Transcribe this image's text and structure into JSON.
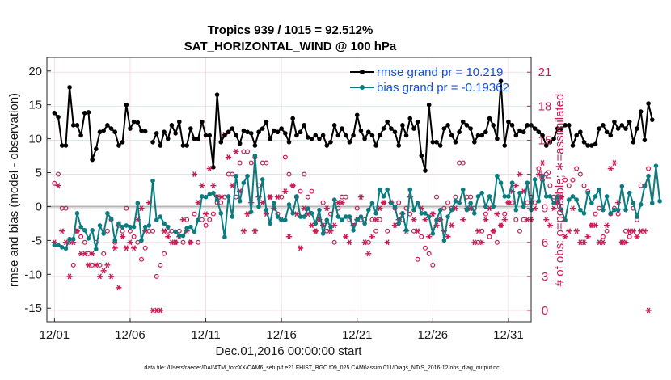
{
  "chart_data": {
    "type": "line",
    "title": "Tropics 939 / 1015 = 92.512%",
    "subtitle": "SAT_HORIZONTAL_WIND @ 100 hPa",
    "xlabel": "Dec.01,2016 00:00:00 start",
    "ylabel": "rmse and bias (model - observation)",
    "y2label": "# of obs: o=possible; ∗=assimilated",
    "footer": "data file: /Users/raeder/DAI/ATM_forcXX/CAM6_setup/f.e21.FHIST_BGC.f09_025.CAM6assim.011/Diags_NTrS_2016-12/obs_diag_output.nc",
    "x_tick_labels": [
      "12/01",
      "12/06",
      "12/11",
      "12/16",
      "12/21",
      "12/26",
      "12/31"
    ],
    "x_ticks": [
      0,
      5,
      10,
      15,
      20,
      25,
      30
    ],
    "xlim": [
      -0.5,
      31.5
    ],
    "ylim": [
      -17,
      22
    ],
    "y_ticks": [
      -15,
      -10,
      -5,
      0,
      5,
      10,
      15,
      20
    ],
    "y_tick_labels": [
      "-15",
      "-10",
      "-5",
      "0",
      "5",
      "10",
      "15",
      "20"
    ],
    "y2lim": [
      -1,
      22.3
    ],
    "y2_ticks": [
      0,
      3,
      6,
      9,
      12,
      15,
      18,
      21
    ],
    "y2_tick_labels": [
      "0",
      "3",
      "6",
      "9",
      "12",
      "15",
      "18",
      "21"
    ],
    "x_start": 0,
    "x_step": 0.25,
    "legend": [
      "rmse grand pr = 10.219",
      "bias grand pr = -0.19362"
    ],
    "colors": {
      "rmse": "#000000",
      "bias": "#0b7d80",
      "obs": "#cc1a55",
      "zero": "#b5b5b5"
    },
    "series": [
      {
        "name": "rmse grand pr = 10.219",
        "values": [
          13.8,
          13.2,
          9.0,
          9.0,
          17.6,
          12.0,
          12.0,
          10.5,
          13.8,
          13.9,
          6.9,
          8.5,
          11.0,
          11.2,
          12.0,
          11.5,
          11.0,
          9.0,
          9.5,
          15.0,
          11.5,
          12.5,
          12.4,
          11.2,
          11.1,
          null,
          9.5,
          10.8,
          9.0,
          11.0,
          10.0,
          12.0,
          10.8,
          12.5,
          9.0,
          9.0,
          11.5,
          10.0,
          10.0,
          12.5,
          10.5,
          10.5,
          5.8,
          16.5,
          9.5,
          10.5,
          11.0,
          11.5,
          10.5,
          9.3,
          11.2,
          11.0,
          10.8,
          9.0,
          11.0,
          11.5,
          12.5,
          10.0,
          11.2,
          11.0,
          11.5,
          10.8,
          9.5,
          13.0,
          10.5,
          11.0,
          12.0,
          10.2,
          10.0,
          10.5,
          10.0,
          10.5,
          9.0,
          9.5,
          12.0,
          10.5,
          11.5,
          10.5,
          9.5,
          10.5,
          13.5,
          11.2,
          10.0,
          11.0,
          10.5,
          9.0,
          10.5,
          11.5,
          12.5,
          11.5,
          11.0,
          9.0,
          12.0,
          10.5,
          13.0,
          11.5,
          12.5,
          7.5,
          5.3,
          15.0,
          9.5,
          9.5,
          9.0,
          11.5,
          12.0,
          10.5,
          9.5,
          11.0,
          12.5,
          12.0,
          11.5,
          9.5,
          10.5,
          10.5,
          11.0,
          13.0,
          12.0,
          10.0,
          18.5,
          9.0,
          12.5,
          12.0,
          10.5,
          11.2,
          11.0,
          12.0,
          12.0,
          11.5,
          11.0,
          10.5,
          9.0,
          9.5,
          10.0,
          11.5,
          11.5,
          12.0,
          12.0,
          9.0,
          10.5,
          11.0,
          9.5,
          9.0,
          9.0,
          9.2,
          11.5,
          12.0,
          11.0,
          10.5,
          12.5,
          11.5,
          12.0,
          11.5,
          12.5,
          9.5,
          11.5,
          14.0,
          9.8,
          15.2,
          12.8
        ],
        "values_note": "rmse values continue"
      },
      {
        "name": "bias grand pr = -0.19362",
        "values": [
          -5.7,
          -5.7,
          -6.0,
          -6.2,
          -4.8,
          -4.8,
          -1.0,
          -3.0,
          -3.5,
          -4.7,
          -3.5,
          -6.3,
          -2.8,
          -4.0,
          -1.0,
          -1.8,
          -5.0,
          -2.5,
          -3.0,
          -2.8,
          -3.0,
          -3.0,
          0.5,
          -5.0,
          -3.0,
          -2.8,
          3.8,
          -2.0,
          -1.5,
          -2.5,
          -3.0,
          null,
          -3.7,
          -4.3,
          -4.3,
          -3.2,
          -3.0,
          -3.7,
          -2.0,
          1.5,
          1.4,
          1.8,
          2.0,
          1.0,
          -1.0,
          -4.5,
          1.5,
          -1.5,
          4.5,
          0.8,
          3.5,
          4.5,
          -0.8,
          7.5,
          0.0,
          4.0,
          -0.5,
          -2.5,
          0.5,
          -1.5,
          -2.0,
          -2.0,
          0.3,
          -1.0,
          1.5,
          -1.5,
          -1.5,
          -0.3,
          -1.0,
          -2.5,
          -0.5,
          -4.0,
          -2.0,
          -3.0,
          1.0,
          -1.5,
          -2.0,
          -1.5,
          -1.5,
          -3.5,
          -2.0,
          -1.5,
          -2.5,
          -0.5,
          0.5,
          -1.0,
          2.5,
          1.5,
          2.5,
          0.5,
          0.0,
          -2.5,
          -1.0,
          -3.5,
          2.5,
          -0.5,
          0.5,
          -1.0,
          -1.0,
          -1.5,
          -4.0,
          -2.0,
          -0.5,
          -5.0,
          -1.5,
          -0.5,
          0.8,
          0.5,
          2.5,
          -0.5,
          0.5,
          -1.0,
          1.5,
          2.0,
          0.0,
          1.5,
          0.0,
          4.5,
          3.5,
          1.5,
          1.5,
          3.5,
          -0.5,
          2.0,
          0.0,
          3.5,
          -0.5,
          4.0,
          0.8,
          4.5,
          1.5,
          1.5,
          0.5,
          1.5,
          -0.5,
          -2.0,
          1.0,
          1.5,
          1.0,
          -0.5,
          -1.0,
          2.0,
          0.5,
          1.5,
          2.5,
          -0.5,
          1.5,
          -1.0,
          -0.5,
          -0.5,
          3.0,
          -0.5,
          2.0,
          0.5,
          -1.5,
          0.3,
          3.0,
          4.5,
          0.5,
          6.0,
          0.8
        ]
      }
    ],
    "obs_possible": [
      11.2,
      12.0,
      9.0,
      9.0,
      6.0,
      4.0,
      7.0,
      6.5,
      6.0,
      5.0,
      4.0,
      6.0,
      4.0,
      5.0,
      7.0,
      8.0,
      6.0,
      7.5,
      7.0,
      9.0,
      7.0,
      6.5,
      6.0,
      4.5,
      5.5,
      7.0,
      7.0,
      3.0,
      4.0,
      5.0,
      7.0,
      7.0,
      6.0,
      7.0,
      6.0,
      8.0,
      6.0,
      8.5,
      6.0,
      8.0,
      7.5,
      8.0,
      8.5,
      9.5,
      9.5,
      10.0,
      12.0,
      12.0,
      10.0,
      13.0,
      14.0,
      14.0,
      13.0,
      13.5,
      11.0,
      13.0,
      13.0,
      10.0,
      9.0,
      8.5,
      10.0,
      13.5,
      12.0,
      11.0,
      10.0,
      10.5,
      12.0,
      10.0,
      10.5,
      7.0,
      8.0,
      9.5,
      7.0,
      8.5,
      6.0,
      9.0,
      10.0,
      10.0,
      8.0,
      7.5,
      9.0,
      8.0,
      8.0,
      6.0,
      8.0,
      7.0,
      8.0,
      9.5,
      7.0,
      9.5,
      9.0,
      9.5,
      8.0,
      9.0,
      8.5,
      7.0,
      4.5,
      6.5,
      5.5,
      5.0,
      4.0,
      10.0,
      8.0,
      9.0,
      9.5,
      9.0,
      10.0,
      13.0,
      13.0,
      10.0,
      10.0,
      9.0,
      6.0,
      7.0,
      8.5,
      6.5,
      7.0,
      6.0,
      7.5,
      8.5,
      9.5,
      9.5,
      8.0,
      7.0,
      8.0,
      9.5,
      10.0,
      9.5,
      12.5,
      11.5,
      12.0,
      11.0,
      10.0,
      9.5,
      10.0,
      11.5,
      11.0,
      11.5,
      12.5,
      12.0,
      11.0,
      10.5,
      7.5,
      8.5,
      9.0,
      6.5,
      7.0,
      8.5,
      9.0,
      8.5,
      6.0,
      7.0,
      6.5,
      9.0,
      8.0,
      11.0,
      11.0,
      12.5
    ],
    "obs_assimilated": [
      6.0,
      11.0,
      7.0,
      6.0,
      3.0,
      6.0,
      7.0,
      5.0,
      5.0,
      4.0,
      5.0,
      4.0,
      3.0,
      3.5,
      4.0,
      3.0,
      5.5,
      2.0,
      6.5,
      5.5,
      6.0,
      5.5,
      8.0,
      9.0,
      7.0,
      9.5,
      0.0,
      0.0,
      0.0,
      7.0,
      6.5,
      6.0,
      6.0,
      6.5,
      8.0,
      7.0,
      6.0,
      12.0,
      9.5,
      11.0,
      8.5,
      12.5,
      11.0,
      10.0,
      10.0,
      15.5,
      13.5,
      11.0,
      14.0,
      10.5,
      7.0,
      8.5,
      9.5,
      7.0,
      10.0,
      9.5,
      8.5,
      10.0,
      9.0,
      10.0,
      8.0,
      10.5,
      6.5,
      11.0,
      8.5,
      5.5,
      9.0,
      8.5,
      7.5,
      7.0,
      8.0,
      7.5,
      9.0,
      7.0,
      7.5,
      9.5,
      9.5,
      6.5,
      6.0,
      7.5,
      8.0,
      10.0,
      6.0,
      5.0,
      6.5,
      8.0,
      9.0,
      9.5,
      6.0,
      9.5,
      7.5,
      8.0,
      8.5,
      7.0,
      10.0,
      8.0,
      7.0,
      9.0,
      8.0,
      6.5,
      8.5,
      7.5,
      8.0,
      7.0,
      6.5,
      7.5,
      9.0,
      9.5,
      8.0,
      9.0,
      9.0,
      6.0,
      7.0,
      6.0,
      8.0,
      9.0,
      7.0,
      8.5,
      7.5,
      8.0,
      9.5,
      10.5,
      11.0,
      12.0,
      10.5,
      8.0,
      8.0,
      9.0,
      12.0,
      13.0,
      8.0,
      7.5,
      9.0,
      9.5,
      10.0,
      6.5,
      7.0,
      9.0,
      7.0,
      6.0,
      6.0,
      6.5,
      7.5,
      7.5,
      6.0,
      6.0,
      7.5,
      12.5,
      13.0,
      9.5,
      6.0,
      6.0,
      7.0,
      7.0,
      6.5,
      7.0,
      7.0,
      0.0
    ]
  }
}
